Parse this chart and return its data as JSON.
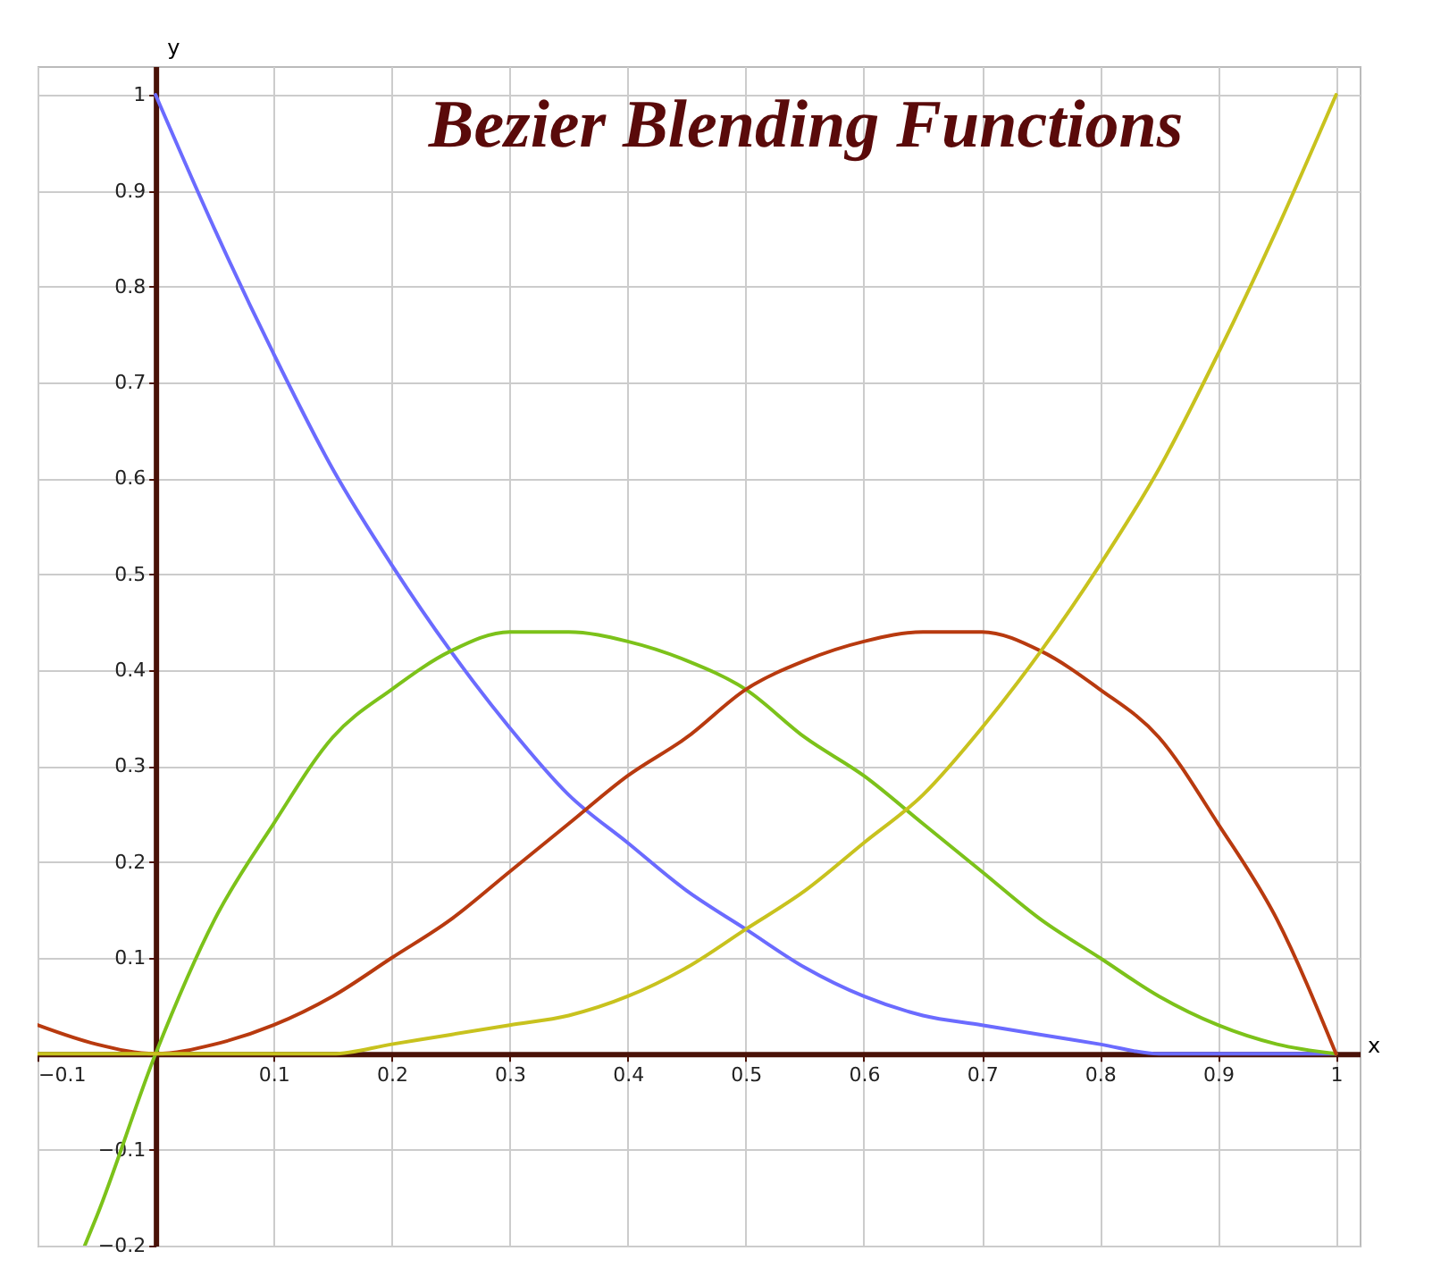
{
  "chart_data": {
    "type": "line",
    "title": "Bezier Blending Functions",
    "xlabel": "x",
    "ylabel": "y",
    "xlim": [
      -0.1,
      1.02
    ],
    "ylim": [
      -0.2,
      1.03
    ],
    "xticks": [
      -0.1,
      0.1,
      0.2,
      0.3,
      0.4,
      0.5,
      0.6,
      0.7,
      0.8,
      0.9,
      1
    ],
    "yticks": [
      -0.2,
      -0.1,
      0.1,
      0.2,
      0.3,
      0.4,
      0.5,
      0.6,
      0.7,
      0.8,
      0.9,
      1
    ],
    "grid": true,
    "marker": "none",
    "line_style": "solid",
    "series": [
      {
        "color": "#6b6bff",
        "x": [
          0,
          0.05,
          0.1,
          0.15,
          0.2,
          0.25,
          0.3,
          0.35,
          0.4,
          0.45,
          0.5,
          0.55,
          0.6,
          0.65,
          0.7,
          0.75,
          0.8,
          0.85,
          0.9,
          0.95,
          1
        ],
        "values": [
          1,
          0.86,
          0.73,
          0.61,
          0.51,
          0.42,
          0.34,
          0.27,
          0.22,
          0.17,
          0.13,
          0.09,
          0.06,
          0.04,
          0.03,
          0.02,
          0.01,
          0,
          0,
          0,
          0
        ]
      },
      {
        "color": "#7cc21a",
        "x": [
          -0.06,
          -0.05,
          0,
          0.05,
          0.1,
          0.15,
          0.2,
          0.25,
          0.3,
          0.35,
          0.4,
          0.45,
          0.5,
          0.55,
          0.6,
          0.65,
          0.7,
          0.75,
          0.8,
          0.85,
          0.9,
          0.95,
          1
        ],
        "values": [
          -0.2,
          -0.17,
          0,
          0.14,
          0.24,
          0.33,
          0.38,
          0.42,
          0.44,
          0.44,
          0.43,
          0.41,
          0.38,
          0.33,
          0.29,
          0.24,
          0.19,
          0.14,
          0.1,
          0.06,
          0.03,
          0.01,
          0
        ]
      },
      {
        "color": "#b83a0f",
        "x": [
          -0.1,
          -0.05,
          0,
          0.05,
          0.1,
          0.15,
          0.2,
          0.25,
          0.3,
          0.35,
          0.4,
          0.45,
          0.5,
          0.55,
          0.6,
          0.65,
          0.7,
          0.75,
          0.8,
          0.85,
          0.9,
          0.95,
          1
        ],
        "values": [
          0.03,
          0.01,
          0,
          0.01,
          0.03,
          0.06,
          0.1,
          0.14,
          0.19,
          0.24,
          0.29,
          0.33,
          0.38,
          0.41,
          0.43,
          0.44,
          0.44,
          0.42,
          0.38,
          0.33,
          0.24,
          0.14,
          0
        ]
      },
      {
        "color": "#c8c21e",
        "x": [
          -0.1,
          -0.05,
          0,
          0.05,
          0.1,
          0.15,
          0.2,
          0.25,
          0.3,
          0.35,
          0.4,
          0.45,
          0.5,
          0.55,
          0.6,
          0.65,
          0.7,
          0.75,
          0.8,
          0.85,
          0.9,
          0.95,
          1
        ],
        "values": [
          0,
          0,
          0,
          0,
          0,
          0,
          0.01,
          0.02,
          0.03,
          0.04,
          0.06,
          0.09,
          0.13,
          0.17,
          0.22,
          0.27,
          0.34,
          0.42,
          0.51,
          0.61,
          0.73,
          0.86,
          1
        ]
      }
    ]
  }
}
